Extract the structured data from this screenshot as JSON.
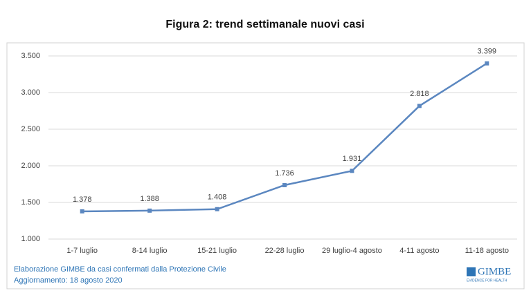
{
  "chart_data": {
    "type": "line",
    "title": "Figura 2: trend settimanale nuovi casi",
    "categories": [
      "1-7 luglio",
      "8-14 luglio",
      "15-21 luglio",
      "22-28 luglio",
      "29 luglio-4 agosto",
      "4-11 agosto",
      "11-18 agosto"
    ],
    "values": [
      1378,
      1388,
      1408,
      1736,
      1931,
      2818,
      3399
    ],
    "value_labels": [
      "1.378",
      "1.388",
      "1.408",
      "1.736",
      "1.931",
      "2.818",
      "3.399"
    ],
    "color": "#5b87c0",
    "ylim": [
      1000,
      3500
    ],
    "yticks": [
      {
        "value": 1000,
        "label": "1.000"
      },
      {
        "value": 1500,
        "label": "1.500"
      },
      {
        "value": 2000,
        "label": "2.000"
      },
      {
        "value": 2500,
        "label": "2.500"
      },
      {
        "value": 3000,
        "label": "3.000"
      },
      {
        "value": 3500,
        "label": "3.500"
      }
    ],
    "grid": true,
    "source": "Elaborazione GIMBE da casi confermati dalla Protezione Civile",
    "updated": "Aggiornamento: 18 agosto 2020",
    "logo": "GIMBE",
    "logo_tagline": "EVIDENCE FOR HEALTH"
  }
}
